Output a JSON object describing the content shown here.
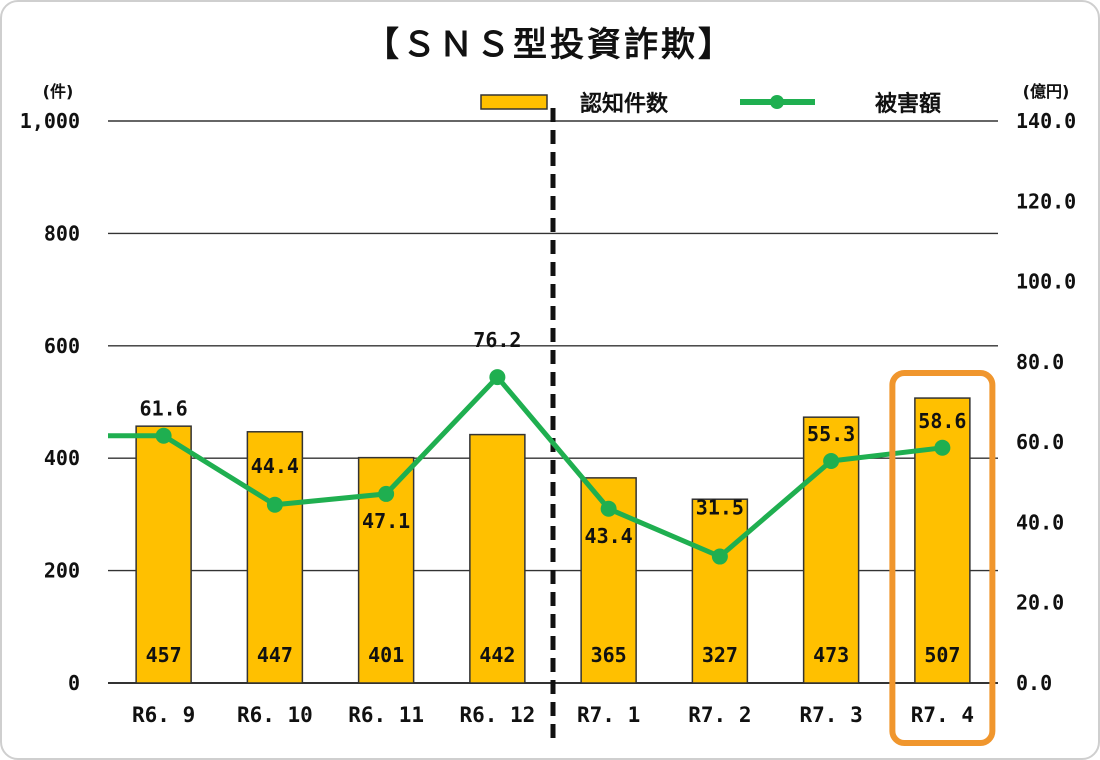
{
  "chart_data": {
    "type": "bar",
    "title": "【ＳＮＳ型投資詐欺】",
    "left_axis_unit": "(件)",
    "right_axis_unit": "(億円)",
    "categories": [
      "R6. 9",
      "R6. 10",
      "R6. 11",
      "R6. 12",
      "R7. 1",
      "R7. 2",
      "R7. 3",
      "R7. 4"
    ],
    "series": [
      {
        "name": "認知件数",
        "type": "bar",
        "axis": "left",
        "values": [
          457,
          447,
          401,
          442,
          365,
          327,
          473,
          507
        ],
        "color": "#FFC000"
      },
      {
        "name": "被害額",
        "type": "line",
        "axis": "right",
        "values": [
          61.6,
          44.4,
          47.1,
          76.2,
          43.4,
          31.5,
          55.3,
          58.6
        ],
        "color": "#1FAF50"
      }
    ],
    "y_left": {
      "min": 0,
      "max": 1000,
      "ticks": [
        "0",
        "200",
        "400",
        "600",
        "800",
        "1,000"
      ]
    },
    "y_right": {
      "min": 0,
      "max": 140,
      "ticks": [
        "0.0",
        "20.0",
        "40.0",
        "60.0",
        "80.0",
        "100.0",
        "120.0",
        "140.0"
      ]
    },
    "grid": true,
    "legend_position": "top-right",
    "divider_after_category": "R6. 12",
    "highlight_category": "R7. 4",
    "highlight_color": "#F0962D"
  }
}
